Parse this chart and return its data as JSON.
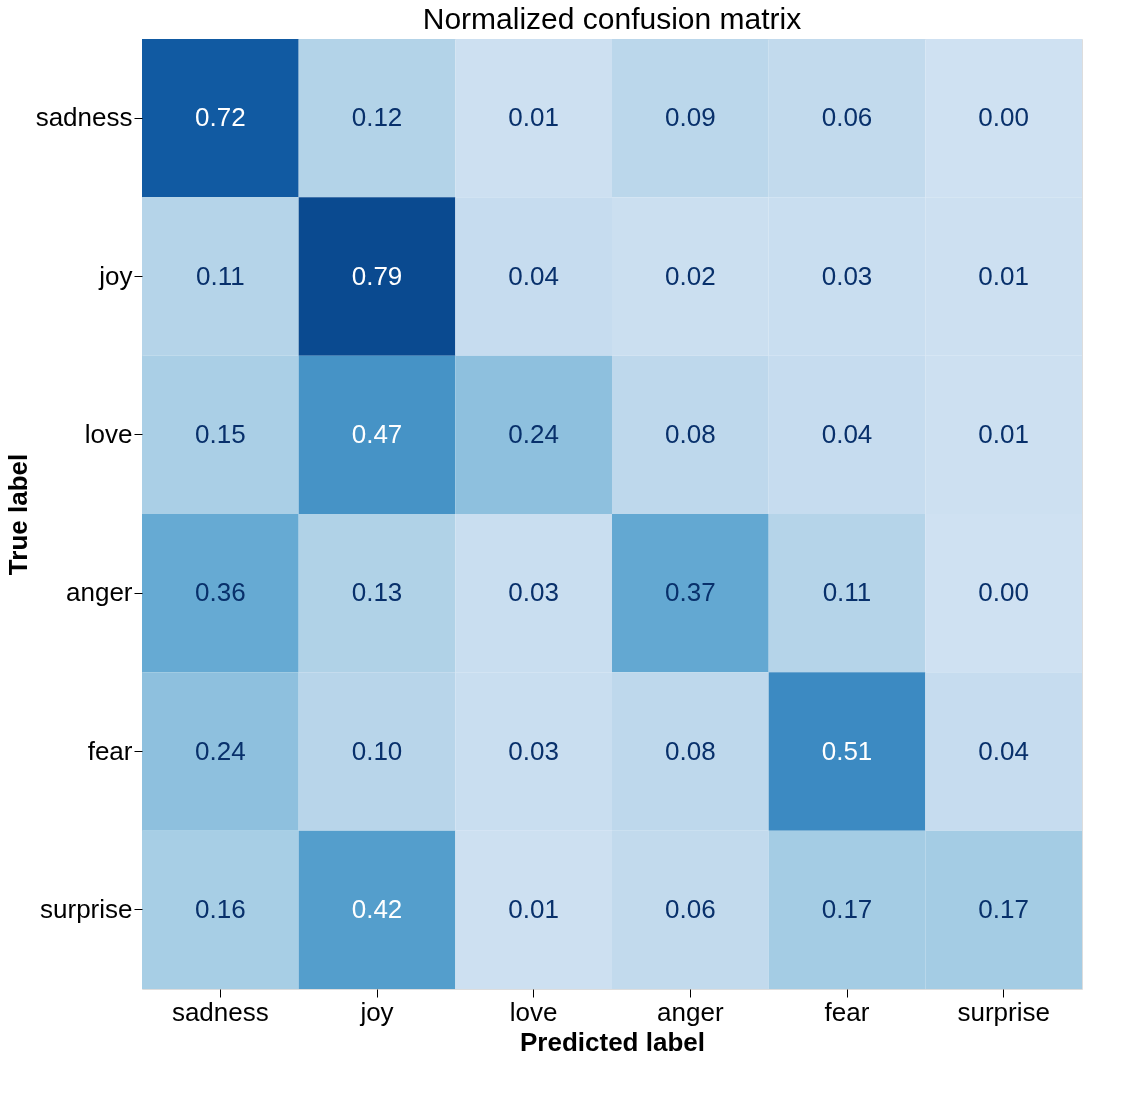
{
  "chart_data": {
    "type": "heatmap",
    "title": "Normalized confusion matrix",
    "xlabel": "Predicted label",
    "ylabel": "True label",
    "categories": [
      "sadness",
      "joy",
      "love",
      "anger",
      "fear",
      "surprise"
    ],
    "y_categories": [
      "sadness",
      "joy",
      "love",
      "anger",
      "fear",
      "surprise"
    ],
    "cells": [
      [
        0.72,
        0.12,
        0.01,
        0.09,
        0.06,
        0.0
      ],
      [
        0.11,
        0.79,
        0.04,
        0.02,
        0.03,
        0.01
      ],
      [
        0.15,
        0.47,
        0.24,
        0.08,
        0.04,
        0.01
      ],
      [
        0.36,
        0.13,
        0.03,
        0.37,
        0.11,
        0.0
      ],
      [
        0.24,
        0.1,
        0.03,
        0.08,
        0.51,
        0.04
      ],
      [
        0.16,
        0.42,
        0.01,
        0.06,
        0.17,
        0.17
      ]
    ],
    "cell_labels": [
      [
        "0.72",
        "0.12",
        "0.01",
        "0.09",
        "0.06",
        "0.00"
      ],
      [
        "0.11",
        "0.79",
        "0.04",
        "0.02",
        "0.03",
        "0.01"
      ],
      [
        "0.15",
        "0.47",
        "0.24",
        "0.08",
        "0.04",
        "0.01"
      ],
      [
        "0.36",
        "0.13",
        "0.03",
        "0.37",
        "0.11",
        "0.00"
      ],
      [
        "0.24",
        "0.10",
        "0.03",
        "0.08",
        "0.51",
        "0.04"
      ],
      [
        "0.16",
        "0.42",
        "0.01",
        "0.06",
        "0.17",
        "0.17"
      ]
    ]
  }
}
